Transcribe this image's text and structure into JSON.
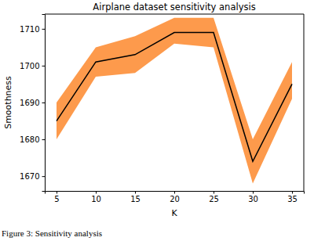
{
  "chart_data": {
    "type": "line",
    "title": "Airplane dataset sensitivity analysis",
    "x_label": "K",
    "y_label": "Smoothness",
    "x": [
      5,
      10,
      15,
      20,
      25,
      30,
      35
    ],
    "series": [
      {
        "color": "#000000",
        "values": [
          1685,
          1701,
          1703,
          1709,
          1709,
          1674,
          1695
        ],
        "lower": [
          1680,
          1697,
          1698,
          1706,
          1705,
          1668,
          1691
        ],
        "upper": [
          1690,
          1705,
          1708,
          1713,
          1713,
          1680,
          1701
        ]
      }
    ],
    "xlim": [
      3.5,
      36.5
    ],
    "xticks": [
      5,
      10,
      15,
      20,
      25,
      30,
      35
    ],
    "ylim": [
      1666,
      1714
    ],
    "yticks": [
      1670,
      1680,
      1690,
      1700,
      1710
    ],
    "grid": false,
    "annotations": [
      "Figure 3: Sensitivity analysis"
    ]
  }
}
